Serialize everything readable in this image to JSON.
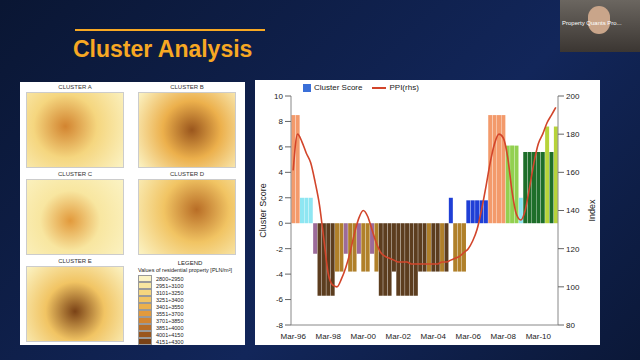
{
  "slide": {
    "title": "Cluster Analysis",
    "speaker_label": "Property Quants Pro...",
    "map": {
      "panels": [
        "CLUSTER A",
        "CLUSTER B",
        "CLUSTER C",
        "CLUSTER D",
        "CLUSTER E"
      ],
      "legend": {
        "title": "LEGEND",
        "caption": "Values of residential property [PLN/m²]",
        "classes": [
          {
            "label": "2800÷2950",
            "color": "#fbf3c4"
          },
          {
            "label": "2951÷3100",
            "color": "#f8e6a0"
          },
          {
            "label": "3101÷3250",
            "color": "#f5d67f"
          },
          {
            "label": "3251÷3400",
            "color": "#f1c463"
          },
          {
            "label": "3401÷3550",
            "color": "#ecb04c"
          },
          {
            "label": "3551÷3700",
            "color": "#e29a3c"
          },
          {
            "label": "3701÷3850",
            "color": "#d28430"
          },
          {
            "label": "3851÷4000",
            "color": "#b86d26"
          },
          {
            "label": "4001÷4150",
            "color": "#9a561d"
          },
          {
            "label": "4151÷4300",
            "color": "#7a4216"
          }
        ]
      }
    }
  },
  "chart_data": {
    "type": "bar",
    "y_label": "Cluster Score",
    "y2_label": "Index",
    "legend": "top left",
    "grid": false,
    "categories": [
      "Mar-96",
      null,
      null,
      null,
      null,
      null,
      null,
      null,
      "Mar-98",
      null,
      null,
      null,
      null,
      null,
      null,
      null,
      "Mar-00",
      null,
      null,
      null,
      null,
      null,
      null,
      null,
      "Mar-02",
      null,
      null,
      null,
      null,
      null,
      null,
      null,
      "Mar-04",
      null,
      null,
      null,
      null,
      null,
      null,
      null,
      "Mar-06",
      null,
      null,
      null,
      null,
      null,
      null,
      null,
      "Mar-08",
      null,
      null,
      null,
      null,
      null,
      null,
      null,
      "Mar-10",
      null,
      null,
      null,
      null
    ],
    "ylim": [
      -8,
      10
    ],
    "yticks": [
      -8,
      -6,
      -4,
      -2,
      0,
      2,
      4,
      6,
      8,
      10
    ],
    "y2lim": [
      80,
      200
    ],
    "y2ticks": [
      80,
      100,
      120,
      140,
      160,
      180,
      200
    ],
    "series": [
      {
        "name": "Cluster Score",
        "type": "bar",
        "color": "#3a6fd8",
        "values": [
          8.5,
          8.5,
          2,
          2,
          2,
          -2.4,
          -5.7,
          -5.7,
          -5.7,
          -5.7,
          -3.8,
          -3.8,
          -2.4,
          -3.8,
          -3.8,
          -2.4,
          -3.8,
          -3.8,
          -2.4,
          -3.8,
          -5.7,
          -5.7,
          -5.7,
          -3.8,
          -5.7,
          -5.7,
          -5.7,
          -5.7,
          -5.7,
          -3.8,
          -3.8,
          -3.8,
          -3.8,
          -3.8,
          -3.8,
          -3.8,
          2,
          -3.8,
          -3.8,
          -3.8,
          1.8,
          1.8,
          1.8,
          1.8,
          1.8,
          8.5,
          8.5,
          8.5,
          8.5,
          6.1,
          6.1,
          6.1,
          2,
          5.6,
          5.6,
          5.6,
          5.6,
          5.6,
          7.6,
          5.6,
          7.6
        ],
        "colors": [
          "#f39a6b",
          "#f39a6b",
          "#8ee6f2",
          "#8ee6f2",
          "#8ee6f2",
          "#9c6b9a",
          "#5c3d1f",
          "#5c3d1f",
          "#5c3d1f",
          "#5c3d1f",
          "#b0802a",
          "#b0802a",
          "#9c6b9a",
          "#b0802a",
          "#b0802a",
          "#9c6b9a",
          "#b0802a",
          "#b0802a",
          "#9c6b9a",
          "#b0802a",
          "#5c3d1f",
          "#5c3d1f",
          "#5c3d1f",
          "#5c3d1f",
          "#5c3d1f",
          "#5c3d1f",
          "#5c3d1f",
          "#5c3d1f",
          "#5c3d1f",
          "#5c3d1f",
          "#5c3d1f",
          "#b0802a",
          "#5c3d1f",
          "#5c3d1f",
          "#b0802a",
          "#5c3d1f",
          "#1f3fd6",
          "#b0802a",
          "#b0802a",
          "#b0802a",
          "#1f3fd6",
          "#1f3fd6",
          "#1f3fd6",
          "#1f3fd6",
          "#1f3fd6",
          "#f39a6b",
          "#f39a6b",
          "#f39a6b",
          "#f39a6b",
          "#92d050",
          "#92d050",
          "#92d050",
          "#8ee6f2",
          "#1e6e2a",
          "#1e6e2a",
          "#1e6e2a",
          "#1e6e2a",
          "#1e6e2a",
          "#b7d33a",
          "#1e6e2a",
          "#b7d33a"
        ]
      },
      {
        "name": "PPI(rhs)",
        "type": "line",
        "color": "#d2452b",
        "axis": "y2",
        "marker": "none",
        "line_style": "solid",
        "values": [
          161,
          180,
          176,
          170,
          165,
          155,
          143,
          125,
          107,
          101,
          100,
          104,
          110,
          118,
          128,
          136,
          140,
          137,
          130,
          123,
          118,
          116,
          115,
          114,
          113,
          113,
          113,
          112,
          112,
          112,
          112,
          112,
          112,
          112,
          113,
          113,
          114,
          115,
          116,
          118,
          120,
          124,
          130,
          140,
          152,
          165,
          175,
          180,
          178,
          168,
          150,
          138,
          135,
          140,
          152,
          165,
          175,
          180,
          186,
          190,
          194
        ]
      }
    ]
  }
}
